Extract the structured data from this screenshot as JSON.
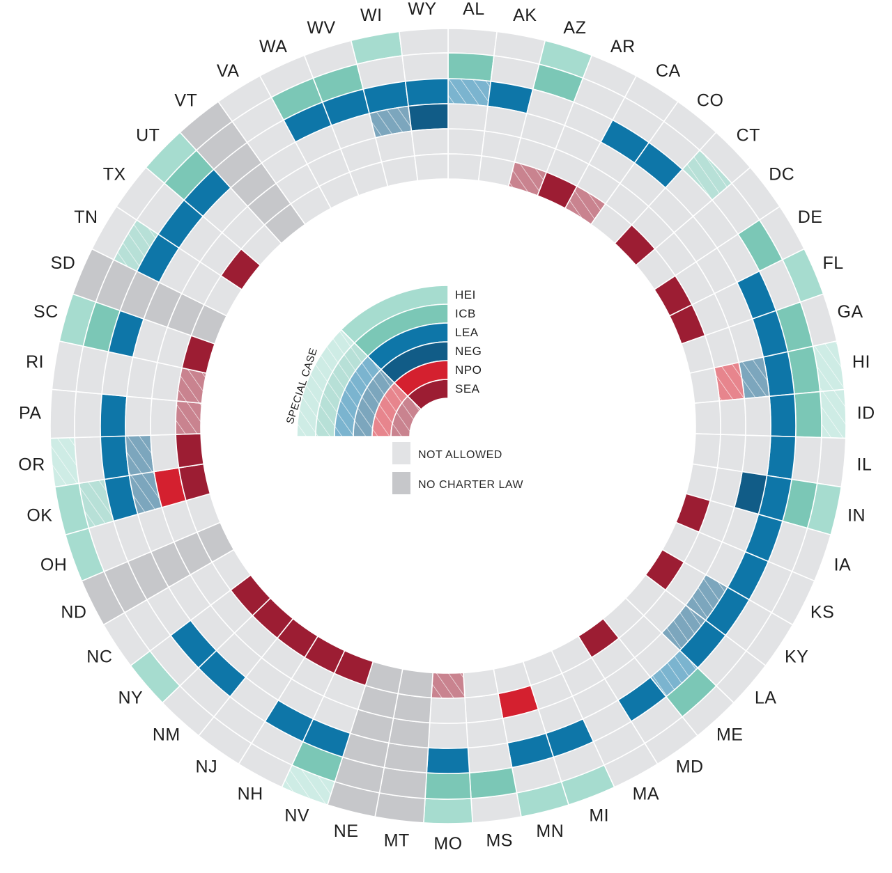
{
  "chart_data": {
    "type": "radial-heatmap",
    "rings_outer_to_inner": [
      "HEI",
      "ICB",
      "LEA",
      "NEG",
      "NPO",
      "SEA"
    ],
    "ring_colors": {
      "HEI": "#a6dccf",
      "ICB": "#7bc7b6",
      "LEA": "#0e76a8",
      "NEG": "#115c87",
      "NPO": "#d4202f",
      "SEA": "#9c1d33"
    },
    "not_allowed_color": "#e2e3e5",
    "no_charter_law_color": "#c6c7ca",
    "code_legend": "0 = not allowed, 1 = allowed, 2 = special case, 3 = no charter law",
    "states": [
      {
        "name": "AL",
        "codes": [
          0,
          1,
          2,
          0,
          0,
          0
        ]
      },
      {
        "name": "AK",
        "codes": [
          0,
          0,
          1,
          0,
          0,
          0
        ]
      },
      {
        "name": "AZ",
        "codes": [
          1,
          1,
          0,
          0,
          0,
          2
        ]
      },
      {
        "name": "AR",
        "codes": [
          0,
          0,
          0,
          0,
          0,
          1
        ]
      },
      {
        "name": "CA",
        "codes": [
          0,
          0,
          1,
          0,
          0,
          2
        ]
      },
      {
        "name": "CO",
        "codes": [
          0,
          0,
          1,
          0,
          0,
          0
        ]
      },
      {
        "name": "CT",
        "codes": [
          0,
          2,
          0,
          0,
          0,
          1
        ]
      },
      {
        "name": "DC",
        "codes": [
          0,
          0,
          0,
          0,
          0,
          0
        ]
      },
      {
        "name": "DE",
        "codes": [
          0,
          1,
          0,
          0,
          0,
          1
        ]
      },
      {
        "name": "FL",
        "codes": [
          1,
          0,
          1,
          0,
          0,
          1
        ]
      },
      {
        "name": "GA",
        "codes": [
          0,
          1,
          1,
          0,
          0,
          0
        ]
      },
      {
        "name": "HI",
        "codes": [
          2,
          1,
          1,
          2,
          2,
          0
        ]
      },
      {
        "name": "ID",
        "codes": [
          2,
          1,
          1,
          0,
          0,
          0
        ]
      },
      {
        "name": "IL",
        "codes": [
          0,
          0,
          1,
          0,
          0,
          0
        ]
      },
      {
        "name": "IN",
        "codes": [
          1,
          1,
          1,
          1,
          0,
          0
        ]
      },
      {
        "name": "IA",
        "codes": [
          0,
          0,
          1,
          0,
          0,
          1
        ]
      },
      {
        "name": "KS",
        "codes": [
          0,
          0,
          1,
          0,
          0,
          0
        ]
      },
      {
        "name": "KY",
        "codes": [
          0,
          0,
          1,
          2,
          0,
          1
        ]
      },
      {
        "name": "LA",
        "codes": [
          0,
          0,
          1,
          2,
          0,
          0
        ]
      },
      {
        "name": "ME",
        "codes": [
          0,
          1,
          2,
          0,
          0,
          0
        ]
      },
      {
        "name": "MD",
        "codes": [
          0,
          0,
          1,
          0,
          0,
          1
        ]
      },
      {
        "name": "MA",
        "codes": [
          0,
          0,
          0,
          0,
          0,
          0
        ]
      },
      {
        "name": "MI",
        "codes": [
          1,
          0,
          1,
          0,
          0,
          0
        ]
      },
      {
        "name": "MN",
        "codes": [
          1,
          0,
          1,
          0,
          1,
          0
        ]
      },
      {
        "name": "MS",
        "codes": [
          0,
          1,
          0,
          0,
          0,
          0
        ]
      },
      {
        "name": "MO",
        "codes": [
          1,
          1,
          1,
          0,
          0,
          2
        ]
      },
      {
        "name": "MT",
        "codes": [
          3,
          3,
          3,
          3,
          3,
          3
        ]
      },
      {
        "name": "NE",
        "codes": [
          3,
          3,
          3,
          3,
          3,
          3
        ]
      },
      {
        "name": "NV",
        "codes": [
          2,
          1,
          1,
          0,
          0,
          1
        ]
      },
      {
        "name": "NH",
        "codes": [
          0,
          0,
          1,
          0,
          0,
          1
        ]
      },
      {
        "name": "NJ",
        "codes": [
          0,
          0,
          0,
          0,
          0,
          1
        ]
      },
      {
        "name": "NM",
        "codes": [
          0,
          0,
          1,
          0,
          0,
          1
        ]
      },
      {
        "name": "NY",
        "codes": [
          1,
          0,
          1,
          0,
          0,
          1
        ]
      },
      {
        "name": "NC",
        "codes": [
          0,
          0,
          0,
          0,
          0,
          0
        ]
      },
      {
        "name": "ND",
        "codes": [
          3,
          3,
          3,
          3,
          3,
          3
        ]
      },
      {
        "name": "OH",
        "codes": [
          1,
          0,
          0,
          0,
          0,
          0
        ]
      },
      {
        "name": "OK",
        "codes": [
          1,
          2,
          1,
          2,
          1,
          1
        ]
      },
      {
        "name": "OR",
        "codes": [
          2,
          0,
          1,
          2,
          0,
          1
        ]
      },
      {
        "name": "PA",
        "codes": [
          0,
          0,
          1,
          0,
          0,
          2
        ]
      },
      {
        "name": "RI",
        "codes": [
          0,
          0,
          0,
          0,
          0,
          2
        ]
      },
      {
        "name": "SC",
        "codes": [
          1,
          1,
          1,
          0,
          0,
          1
        ]
      },
      {
        "name": "SD",
        "codes": [
          3,
          3,
          3,
          3,
          3,
          3
        ]
      },
      {
        "name": "TN",
        "codes": [
          0,
          2,
          1,
          0,
          0,
          0
        ]
      },
      {
        "name": "TX",
        "codes": [
          0,
          0,
          1,
          0,
          0,
          1
        ]
      },
      {
        "name": "UT",
        "codes": [
          1,
          1,
          1,
          0,
          0,
          0
        ]
      },
      {
        "name": "VT",
        "codes": [
          3,
          3,
          3,
          3,
          3,
          3
        ]
      },
      {
        "name": "VA",
        "codes": [
          0,
          0,
          0,
          0,
          0,
          0
        ]
      },
      {
        "name": "WA",
        "codes": [
          0,
          1,
          1,
          0,
          0,
          0
        ]
      },
      {
        "name": "WV",
        "codes": [
          0,
          1,
          1,
          0,
          0,
          0
        ]
      },
      {
        "name": "WI",
        "codes": [
          1,
          0,
          1,
          2,
          0,
          0
        ]
      },
      {
        "name": "WY",
        "codes": [
          0,
          0,
          1,
          1,
          0,
          0
        ]
      }
    ],
    "legend": {
      "special_case_label": "SPECIAL CASE",
      "not_allowed_label": "NOT ALLOWED",
      "no_charter_law_label": "NO CHARTER LAW"
    }
  }
}
